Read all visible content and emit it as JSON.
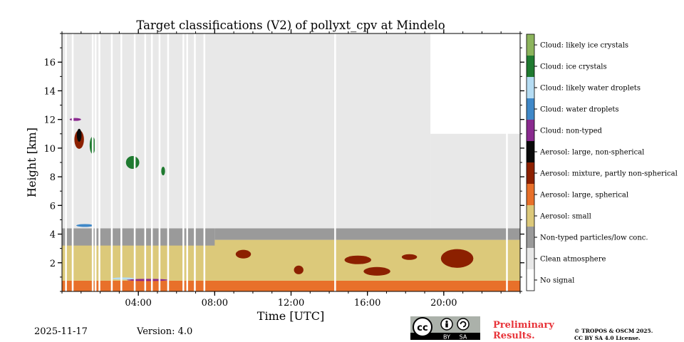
{
  "chart_data": {
    "type": "heatmap",
    "title": "Target classifications (V2) of pollyxt_cpv at Mindelo",
    "xlabel": "Time [UTC]",
    "ylabel": "Height [km]",
    "xlim": [
      0,
      24
    ],
    "ylim": [
      0,
      18
    ],
    "x_ticks": [
      {
        "value": 4,
        "label": "04:00"
      },
      {
        "value": 8,
        "label": "08:00"
      },
      {
        "value": 12,
        "label": "12:00"
      },
      {
        "value": 16,
        "label": "16:00"
      },
      {
        "value": 20,
        "label": "20:00"
      }
    ],
    "y_ticks": [
      {
        "value": 2,
        "label": "2"
      },
      {
        "value": 4,
        "label": "4"
      },
      {
        "value": 6,
        "label": "6"
      },
      {
        "value": 8,
        "label": "8"
      },
      {
        "value": 10,
        "label": "10"
      },
      {
        "value": 12,
        "label": "12"
      },
      {
        "value": 14,
        "label": "14"
      },
      {
        "value": 16,
        "label": "16"
      }
    ],
    "classes": [
      {
        "code": 0,
        "label": "No signal",
        "color": "#ffffff"
      },
      {
        "code": 1,
        "label": "Clean atmosphere",
        "color": "#e8e8e8"
      },
      {
        "code": 2,
        "label": "Non-typed particles/low conc.",
        "color": "#9a9a9a"
      },
      {
        "code": 3,
        "label": "Aerosol: small",
        "color": "#dcc97a"
      },
      {
        "code": 4,
        "label": "Aerosol: large, spherical",
        "color": "#e8702a"
      },
      {
        "code": 5,
        "label": "Aerosol: mixture, partly non-spherical",
        "color": "#8c2000"
      },
      {
        "code": 6,
        "label": "Aerosol: large, non-spherical",
        "color": "#0a0a0a"
      },
      {
        "code": 7,
        "label": "Cloud: non-typed",
        "color": "#8a2a8f"
      },
      {
        "code": 8,
        "label": "Cloud: water droplets",
        "color": "#3f88c8"
      },
      {
        "code": 9,
        "label": "Cloud: likely water droplets",
        "color": "#b5dcf3"
      },
      {
        "code": 10,
        "label": "Cloud: ice crystals",
        "color": "#1f7a30"
      },
      {
        "code": 11,
        "label": "Cloud: likely ice crystals",
        "color": "#8cb45c"
      }
    ],
    "layers": [
      {
        "class": 4,
        "t0": 0,
        "t1": 24,
        "h0": 0,
        "h1": 0.75
      },
      {
        "class": 3,
        "t0": 0,
        "t1": 24,
        "h0": 0.75,
        "h1": 3.6
      },
      {
        "class": 2,
        "t0": 0,
        "t1": 8,
        "h0": 3.2,
        "h1": 4.6
      },
      {
        "class": 2,
        "t0": 8,
        "t1": 24,
        "h0": 3.6,
        "h1": 4.4
      },
      {
        "class": 1,
        "t0": 0,
        "t1": 19.3,
        "h0": 4.4,
        "h1": 18
      },
      {
        "class": 1,
        "t0": 19.3,
        "t1": 24,
        "h0": 4.4,
        "h1": 11
      }
    ],
    "features": [
      {
        "class": 5,
        "kind": "ellipse",
        "t": 20.7,
        "h": 2.3,
        "dt": 1.7,
        "dh": 1.3
      },
      {
        "class": 5,
        "kind": "ellipse",
        "t": 16.5,
        "h": 1.4,
        "dt": 1.4,
        "dh": 0.6
      },
      {
        "class": 5,
        "kind": "ellipse",
        "t": 15.5,
        "h": 2.2,
        "dt": 1.4,
        "dh": 0.6
      },
      {
        "class": 5,
        "kind": "ellipse",
        "t": 12.4,
        "h": 1.5,
        "dt": 0.5,
        "dh": 0.6
      },
      {
        "class": 5,
        "kind": "ellipse",
        "t": 9.5,
        "h": 2.6,
        "dt": 0.8,
        "dh": 0.6
      },
      {
        "class": 5,
        "kind": "ellipse",
        "t": 18.2,
        "h": 2.4,
        "dt": 0.8,
        "dh": 0.4
      },
      {
        "class": 5,
        "kind": "ellipse",
        "t": 0.9,
        "h": 10.6,
        "dt": 0.5,
        "dh": 1.3
      },
      {
        "class": 6,
        "kind": "ellipse",
        "t": 0.9,
        "h": 10.9,
        "dt": 0.25,
        "dh": 0.9
      },
      {
        "class": 10,
        "kind": "ellipse",
        "t": 3.7,
        "h": 9.0,
        "dt": 0.7,
        "dh": 0.9
      },
      {
        "class": 10,
        "kind": "ellipse",
        "t": 1.6,
        "h": 10.2,
        "dt": 0.3,
        "dh": 1.2
      },
      {
        "class": 10,
        "kind": "ellipse",
        "t": 5.3,
        "h": 8.4,
        "dt": 0.2,
        "dh": 0.6
      },
      {
        "class": 7,
        "kind": "ellipse",
        "t": 0.7,
        "h": 12.0,
        "dt": 0.6,
        "dh": 0.2
      },
      {
        "class": 7,
        "kind": "ellipse",
        "t": 4.5,
        "h": 0.8,
        "dt": 2.2,
        "dh": 0.15
      },
      {
        "class": 8,
        "kind": "ellipse",
        "t": 1.2,
        "h": 4.6,
        "dt": 0.9,
        "dh": 0.2
      },
      {
        "class": 9,
        "kind": "ellipse",
        "t": 3.2,
        "h": 0.9,
        "dt": 1.2,
        "dh": 0.15
      }
    ],
    "data_gaps": [
      0.2,
      0.55,
      1.6,
      1.75,
      1.95,
      2.6,
      3.1,
      3.8,
      4.35,
      4.7,
      5.1,
      5.55,
      6.35,
      6.55,
      6.95,
      7.45,
      14.3,
      23.3
    ],
    "legend_position": "right"
  },
  "footer": {
    "date": "2025-11-17",
    "version": "Version: 4.0",
    "cc_letters": "cc",
    "cc_by": "BY",
    "cc_sa": "SA",
    "preliminary_line1": "Preliminary",
    "preliminary_line2": "Results.",
    "copyright_line1": "© TROPOS & OSCM 2025.",
    "copyright_line2": "CC BY SA 4.0 License."
  }
}
